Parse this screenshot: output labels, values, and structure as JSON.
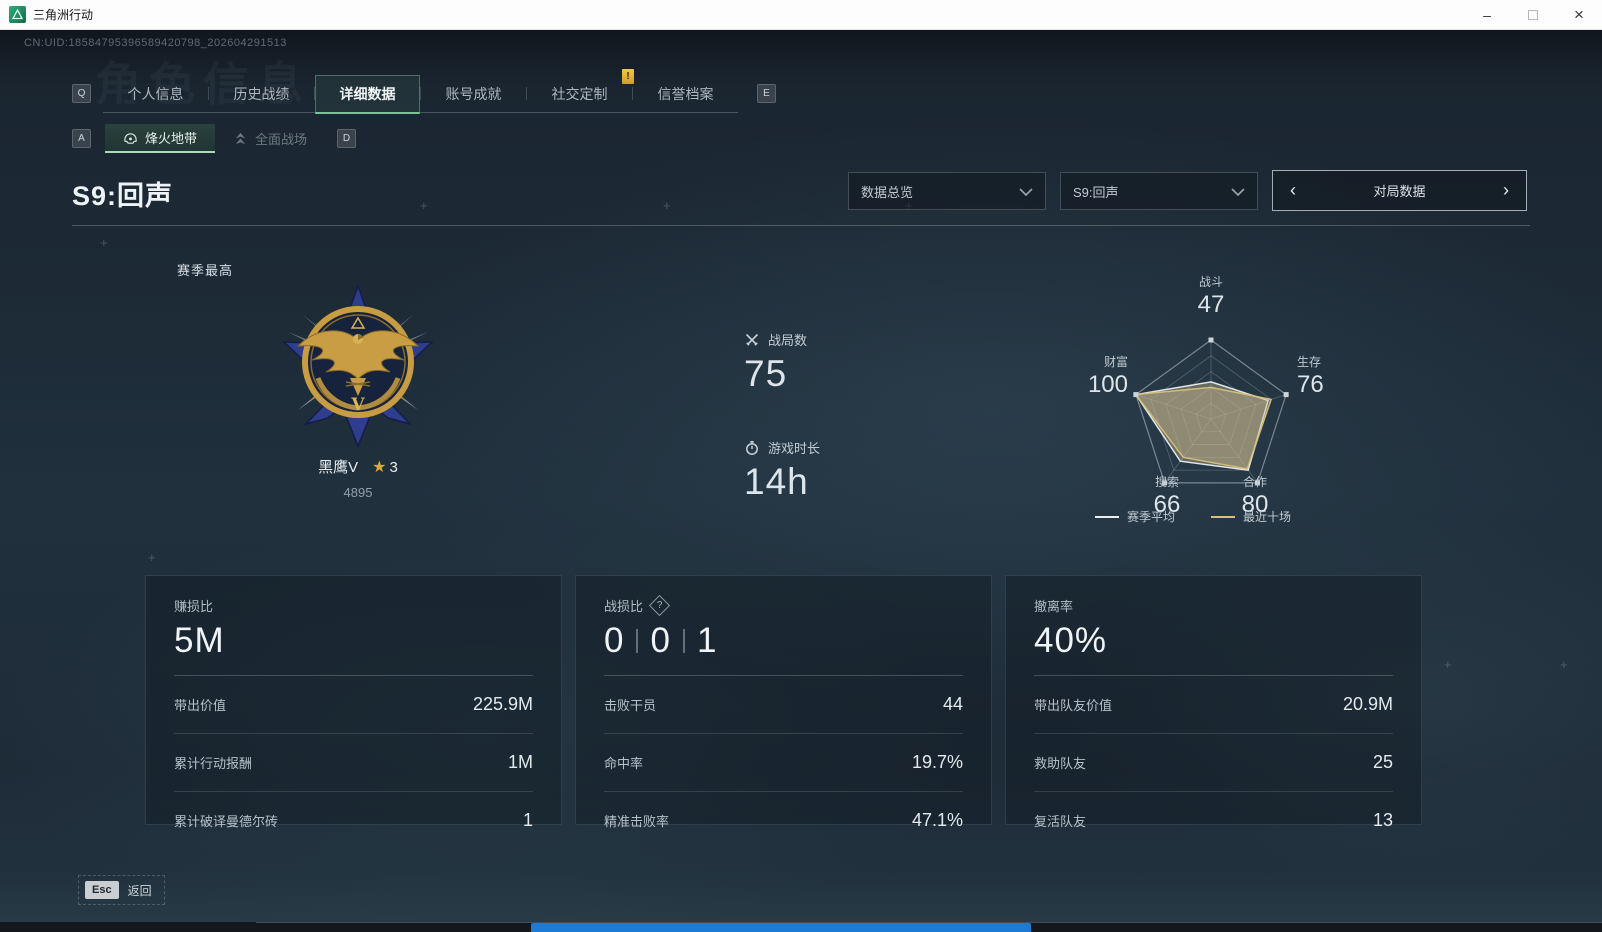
{
  "window": {
    "title": "三角洲行动"
  },
  "topbar": {
    "uid": "CN:UID:18584795396589420798_202604291513",
    "ghost_title": "角色信息"
  },
  "key_hints": {
    "prev_tab": "Q",
    "next_tab": "E",
    "prev_subtab": "A",
    "next_subtab": "D"
  },
  "tabs": [
    {
      "label": "个人信息",
      "active": false
    },
    {
      "label": "历史战绩",
      "active": false
    },
    {
      "label": "详细数据",
      "active": true
    },
    {
      "label": "账号成就",
      "active": false
    },
    {
      "label": "社交定制",
      "active": false
    },
    {
      "label": "信誉档案",
      "active": false
    }
  ],
  "notification_badge": "!",
  "subtabs": [
    {
      "label": "烽火地带",
      "active": true
    },
    {
      "label": "全面战场",
      "active": false
    }
  ],
  "header": {
    "season_title": "S9:回声",
    "dropdown_overview": "数据总览",
    "dropdown_season": "S9:回声",
    "pager_label": "对局数据"
  },
  "season_best": {
    "label": "赛季最高",
    "rank_name": "黑鹰V",
    "star_glyph": "★",
    "star_count": "3",
    "rank_points": "4895",
    "tier_numeral": "V"
  },
  "summary_stats": [
    {
      "icon": "crossed-swords-icon",
      "label": "战局数",
      "value": "75"
    },
    {
      "icon": "stopwatch-icon",
      "label": "游戏时长",
      "value": "14h"
    }
  ],
  "chart_data": {
    "type": "radar",
    "title": "",
    "axes": [
      "战斗",
      "生存",
      "合作",
      "搜索",
      "财富"
    ],
    "max": 100,
    "grid_levels": 5,
    "displayed_values": [
      "47",
      "76",
      "80",
      "66",
      "100"
    ],
    "series": [
      {
        "name": "赛季平均",
        "color": "#e8eef2",
        "values": [
          47,
          76,
          80,
          66,
          100
        ]
      },
      {
        "name": "最近十场",
        "color": "#d8c07a",
        "values": [
          40,
          80,
          78,
          60,
          100
        ]
      }
    ],
    "fill_color": "rgba(203,184,142,0.40)",
    "legend_position": "bottom"
  },
  "cards": [
    {
      "title": "赚损比",
      "value": "5M",
      "rows": [
        {
          "label": "带出价值",
          "value": "225.9M"
        },
        {
          "label": "累计行动报酬",
          "value": "1M"
        },
        {
          "label": "累计破译曼德尔砖",
          "value": "1"
        }
      ]
    },
    {
      "title": "战损比",
      "help_icon": "?",
      "value_parts": [
        "0",
        "0",
        "1"
      ],
      "rows": [
        {
          "label": "击败干员",
          "value": "44"
        },
        {
          "label": "命中率",
          "value": "19.7%"
        },
        {
          "label": "精准击败率",
          "value": "47.1%"
        }
      ]
    },
    {
      "title": "撤离率",
      "value": "40%",
      "rows": [
        {
          "label": "带出队友价值",
          "value": "20.9M"
        },
        {
          "label": "救助队友",
          "value": "25"
        },
        {
          "label": "复活队友",
          "value": "13"
        }
      ]
    }
  ],
  "footer": {
    "esc_key": "Esc",
    "back_label": "返回"
  },
  "colors": {
    "accent_green": "#74c79b",
    "gold": "#d9ab3c",
    "badge_gold": "#e9b93c",
    "taskbar_blue": "#1c7bd4"
  }
}
